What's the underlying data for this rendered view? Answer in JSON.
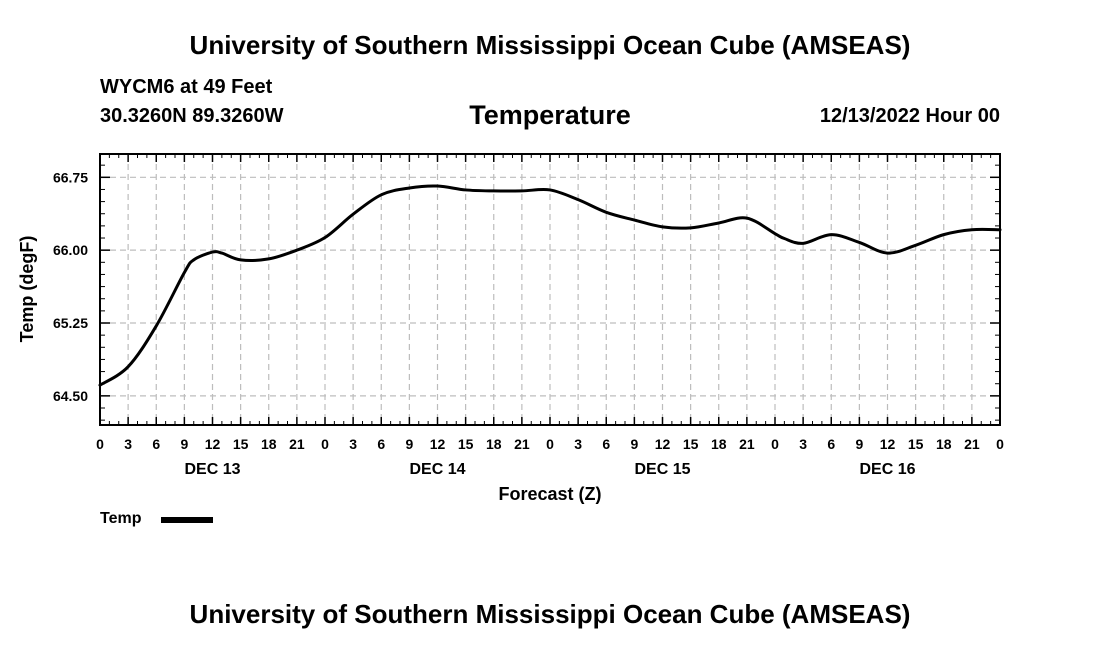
{
  "header": {
    "title": "University of Southern Mississippi Ocean Cube (AMSEAS)",
    "station": "WYCM6 at 49 Feet",
    "coordinates": "30.3260N  89.3260W",
    "chart_title": "Temperature",
    "run_time": "12/13/2022 Hour 00"
  },
  "footer": {
    "title": "University of Southern Mississippi Ocean Cube (AMSEAS)"
  },
  "legend": {
    "label": "Temp",
    "color": "#000000"
  },
  "chart_data": {
    "type": "line",
    "title": "Temperature",
    "xlabel": "Forecast (Z)",
    "ylabel": "Temp (degF)",
    "ylim": [
      64.2,
      66.99
    ],
    "xlim": [
      0,
      96
    ],
    "grid": true,
    "yticks": [
      64.5,
      65.25,
      66.0,
      66.75
    ],
    "ytick_labels": [
      "64.50",
      "65.25",
      "66.00",
      "66.75"
    ],
    "xticks": [
      0,
      3,
      6,
      9,
      12,
      15,
      18,
      21,
      24,
      27,
      30,
      33,
      36,
      39,
      42,
      45,
      48,
      51,
      54,
      57,
      60,
      63,
      66,
      69,
      72,
      75,
      78,
      81,
      84,
      87,
      90,
      93,
      96
    ],
    "xtick_labels": [
      "0",
      "3",
      "6",
      "9",
      "12",
      "15",
      "18",
      "21",
      "0",
      "3",
      "6",
      "9",
      "12",
      "15",
      "18",
      "21",
      "0",
      "3",
      "6",
      "9",
      "12",
      "15",
      "18",
      "21",
      "0",
      "3",
      "6",
      "9",
      "12",
      "15",
      "18",
      "21",
      "0"
    ],
    "day_labels": [
      {
        "hour": 12,
        "label": "DEC 13"
      },
      {
        "hour": 36,
        "label": "DEC 14"
      },
      {
        "hour": 60,
        "label": "DEC 15"
      },
      {
        "hour": 84,
        "label": "DEC 16"
      }
    ],
    "series": [
      {
        "name": "Temp",
        "x": [
          0,
          3,
          6,
          9,
          10,
          12,
          13,
          15,
          18,
          21,
          24,
          27,
          30,
          33,
          36,
          39,
          42,
          45,
          48,
          51,
          54,
          57,
          60,
          63,
          66,
          69,
          72,
          73,
          75,
          78,
          81,
          84,
          87,
          90,
          93,
          96
        ],
        "values": [
          64.61,
          64.8,
          65.22,
          65.77,
          65.9,
          65.98,
          65.97,
          65.9,
          65.91,
          66.0,
          66.13,
          66.37,
          66.57,
          66.64,
          66.66,
          66.62,
          66.61,
          66.61,
          66.62,
          66.52,
          66.39,
          66.31,
          66.24,
          66.23,
          66.28,
          66.33,
          66.17,
          66.12,
          66.07,
          66.16,
          66.08,
          65.97,
          66.05,
          66.16,
          66.21,
          66.21
        ]
      }
    ]
  }
}
